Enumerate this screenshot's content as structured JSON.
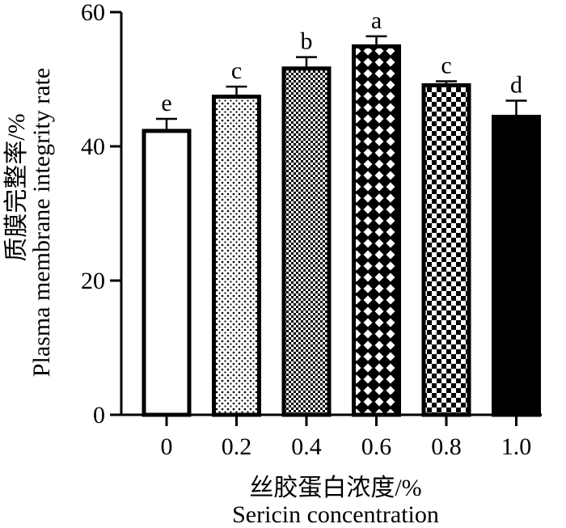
{
  "chart_data": {
    "type": "bar",
    "title": "",
    "xlabel_cn": "丝胶蛋白浓度/%",
    "xlabel_en": "Sericin concentration",
    "ylabel_cn": "质膜完整率/%",
    "ylabel_en": "Plasma membrane integrity rate",
    "categories": [
      "0",
      "0.2",
      "0.4",
      "0.6",
      "0.8",
      "1.0"
    ],
    "values": [
      42.3,
      47.4,
      51.6,
      54.9,
      49.1,
      44.4
    ],
    "errors": [
      1.8,
      1.5,
      1.7,
      1.5,
      0.6,
      2.4
    ],
    "significance": [
      "e",
      "c",
      "b",
      "a",
      "c",
      "d"
    ],
    "patterns": [
      "blank",
      "dots",
      "fine-checker",
      "diamond-lattice",
      "checker",
      "solid"
    ],
    "ylim": [
      0,
      60
    ],
    "yticks": [
      0,
      20,
      40,
      60
    ],
    "grid": false,
    "legend": "none",
    "colors": {
      "bar_stroke": "#000000",
      "fill": "#000000",
      "background": "#ffffff"
    }
  }
}
